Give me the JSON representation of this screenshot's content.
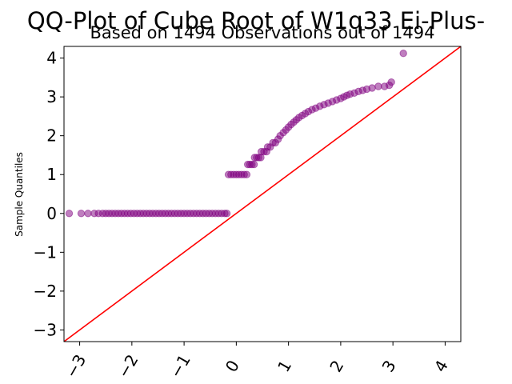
{
  "chart_data": {
    "type": "scatter",
    "title": "QQ-Plot of Cube Root of W1q33 Ei-Plus-",
    "subtitle": "Based on 1494 Observations out of 1494",
    "xlabel": "",
    "ylabel": "Sample Quantiles",
    "xlim": [
      -3.3,
      4.3
    ],
    "ylim": [
      -3.3,
      4.3
    ],
    "xticks": [
      -3,
      -2,
      -1,
      0,
      1,
      2,
      3,
      4
    ],
    "yticks": [
      -3,
      -2,
      -1,
      0,
      1,
      2,
      3,
      4
    ],
    "xtick_labels": [
      "−3",
      "−2",
      "−1",
      "0",
      "1",
      "2",
      "3",
      "4"
    ],
    "ytick_labels": [
      "−3",
      "−2",
      "−1",
      "0",
      "1",
      "2",
      "3",
      "4"
    ],
    "grid": false,
    "point_color": "#800080",
    "line_color": "#ff0000",
    "reference_line": {
      "slope": 1,
      "intercept": 0
    },
    "points": [
      [
        -3.2,
        0
      ],
      [
        -2.97,
        0
      ],
      [
        -2.84,
        0
      ],
      [
        -2.72,
        0
      ],
      [
        -2.64,
        0
      ],
      [
        -2.56,
        0
      ],
      [
        -2.5,
        0
      ],
      [
        -2.44,
        0
      ],
      [
        -2.38,
        0
      ],
      [
        -2.32,
        0
      ],
      [
        -2.26,
        0
      ],
      [
        -2.2,
        0
      ],
      [
        -2.14,
        0
      ],
      [
        -2.08,
        0
      ],
      [
        -2.02,
        0
      ],
      [
        -1.96,
        0
      ],
      [
        -1.9,
        0
      ],
      [
        -1.84,
        0
      ],
      [
        -1.78,
        0
      ],
      [
        -1.72,
        0
      ],
      [
        -1.66,
        0
      ],
      [
        -1.6,
        0
      ],
      [
        -1.54,
        0
      ],
      [
        -1.48,
        0
      ],
      [
        -1.42,
        0
      ],
      [
        -1.36,
        0
      ],
      [
        -1.3,
        0
      ],
      [
        -1.24,
        0
      ],
      [
        -1.18,
        0
      ],
      [
        -1.12,
        0
      ],
      [
        -1.06,
        0
      ],
      [
        -1.0,
        0
      ],
      [
        -0.94,
        0
      ],
      [
        -0.88,
        0
      ],
      [
        -0.82,
        0
      ],
      [
        -0.76,
        0
      ],
      [
        -0.7,
        0
      ],
      [
        -0.64,
        0
      ],
      [
        -0.58,
        0
      ],
      [
        -0.52,
        0
      ],
      [
        -0.46,
        0
      ],
      [
        -0.4,
        0
      ],
      [
        -0.34,
        0
      ],
      [
        -0.28,
        0
      ],
      [
        -0.22,
        0
      ],
      [
        -0.18,
        0
      ],
      [
        -0.15,
        1
      ],
      [
        -0.1,
        1
      ],
      [
        -0.05,
        1
      ],
      [
        0.0,
        1
      ],
      [
        0.05,
        1
      ],
      [
        0.1,
        1
      ],
      [
        0.15,
        1
      ],
      [
        0.2,
        1
      ],
      [
        0.22,
        1.26
      ],
      [
        0.26,
        1.26
      ],
      [
        0.3,
        1.26
      ],
      [
        0.34,
        1.26
      ],
      [
        0.35,
        1.44
      ],
      [
        0.39,
        1.44
      ],
      [
        0.43,
        1.44
      ],
      [
        0.47,
        1.44
      ],
      [
        0.48,
        1.59
      ],
      [
        0.53,
        1.59
      ],
      [
        0.58,
        1.59
      ],
      [
        0.6,
        1.71
      ],
      [
        0.65,
        1.71
      ],
      [
        0.7,
        1.82
      ],
      [
        0.75,
        1.82
      ],
      [
        0.8,
        1.91
      ],
      [
        0.84,
        2.0
      ],
      [
        0.9,
        2.08
      ],
      [
        0.95,
        2.15
      ],
      [
        1.0,
        2.22
      ],
      [
        1.05,
        2.29
      ],
      [
        1.1,
        2.35
      ],
      [
        1.15,
        2.41
      ],
      [
        1.2,
        2.47
      ],
      [
        1.26,
        2.52
      ],
      [
        1.32,
        2.57
      ],
      [
        1.38,
        2.62
      ],
      [
        1.45,
        2.67
      ],
      [
        1.52,
        2.71
      ],
      [
        1.6,
        2.76
      ],
      [
        1.68,
        2.8
      ],
      [
        1.76,
        2.84
      ],
      [
        1.84,
        2.88
      ],
      [
        1.92,
        2.92
      ],
      [
        2.0,
        2.96
      ],
      [
        2.06,
        3.0
      ],
      [
        2.12,
        3.04
      ],
      [
        2.18,
        3.07
      ],
      [
        2.26,
        3.1
      ],
      [
        2.34,
        3.14
      ],
      [
        2.42,
        3.17
      ],
      [
        2.5,
        3.2
      ],
      [
        2.6,
        3.23
      ],
      [
        2.72,
        3.27
      ],
      [
        2.84,
        3.27
      ],
      [
        2.93,
        3.3
      ],
      [
        2.97,
        3.38
      ],
      [
        3.2,
        4.12
      ]
    ]
  }
}
